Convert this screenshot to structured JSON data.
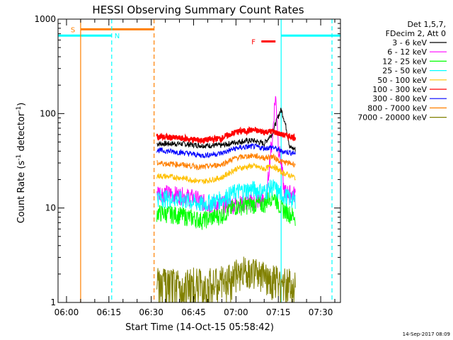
{
  "chart_data": {
    "type": "line",
    "title": "HESSI Observing Summary Count Rates",
    "xlabel": "Start Time (14-Oct-15 05:58:42)",
    "ylabel": {
      "pre": "Count Rate (s",
      "sup1": "-1",
      "mid": " detector",
      "sup2": "-1",
      "post": ")"
    },
    "yscale": "log",
    "ylim": [
      1,
      1000
    ],
    "y_ticks": [
      {
        "v": 1,
        "label": "1"
      },
      {
        "v": 10,
        "label": "10"
      },
      {
        "v": 100,
        "label": "100"
      },
      {
        "v": 1000,
        "label": "1000"
      }
    ],
    "xlim": [
      "05:57",
      "07:37"
    ],
    "x_ticks": [
      {
        "t": "06:00",
        "label": "06:00"
      },
      {
        "t": "06:15",
        "label": "06:15"
      },
      {
        "t": "06:30",
        "label": "06:30"
      },
      {
        "t": "06:45",
        "label": "06:45"
      },
      {
        "t": "07:00",
        "label": "07:00"
      },
      {
        "t": "07:15",
        "label": "07:15"
      },
      {
        "t": "07:30",
        "label": "07:30"
      }
    ],
    "legend_header": [
      "Det 1,5,7,",
      "FDecim 2, Att 0"
    ],
    "legend_position": "right",
    "series": [
      {
        "name": "3 - 6 keV",
        "color": "#000000",
        "x": [
          "06:32",
          "06:40",
          "06:48",
          "06:55",
          "07:00",
          "07:06",
          "07:10",
          "07:13",
          "07:16",
          "07:19",
          "07:21"
        ],
        "y": [
          48,
          48,
          46,
          46,
          50,
          52,
          48,
          62,
          110,
          44,
          42
        ]
      },
      {
        "name": "6 - 12 keV",
        "color": "#ff00ff",
        "x": [
          "06:32",
          "06:45",
          "06:50",
          "07:00",
          "07:08",
          "07:11",
          "07:13",
          "07:14",
          "07:15",
          "07:17",
          "07:21"
        ],
        "y": [
          15,
          13,
          11,
          11,
          12,
          12,
          55,
          150,
          45,
          15,
          14
        ]
      },
      {
        "name": "12 - 25 keV",
        "color": "#00ff00",
        "x": [
          "06:32",
          "06:40",
          "06:48",
          "06:55",
          "07:00",
          "07:06",
          "07:10",
          "07:13",
          "07:16",
          "07:21"
        ],
        "y": [
          9,
          8.5,
          7.5,
          8.5,
          10.5,
          11,
          11,
          14,
          10,
          8
        ]
      },
      {
        "name": "25 - 50 keV",
        "color": "#00ffff",
        "x": [
          "06:32",
          "06:40",
          "06:48",
          "06:55",
          "07:00",
          "07:06",
          "07:10",
          "07:13",
          "07:16",
          "07:21"
        ],
        "y": [
          13,
          12.5,
          11,
          12.5,
          15,
          16,
          15,
          17,
          14,
          12
        ]
      },
      {
        "name": "50 - 100 keV",
        "color": "#ffc000",
        "x": [
          "06:32",
          "06:40",
          "06:48",
          "06:55",
          "07:00",
          "07:06",
          "07:10",
          "07:13",
          "07:16",
          "07:21"
        ],
        "y": [
          22,
          21,
          19,
          21,
          26,
          28,
          26,
          28,
          24,
          21
        ]
      },
      {
        "name": "100 - 300 keV",
        "color": "#ff0000",
        "x": [
          "06:32",
          "06:40",
          "06:48",
          "06:55",
          "07:00",
          "07:06",
          "07:10",
          "07:13",
          "07:16",
          "07:21"
        ],
        "y": [
          57,
          55,
          52,
          55,
          64,
          67,
          64,
          65,
          60,
          56
        ]
      },
      {
        "name": "300 - 800 keV",
        "color": "#0000ff",
        "x": [
          "06:32",
          "06:40",
          "06:48",
          "06:55",
          "07:00",
          "07:06",
          "07:10",
          "07:13",
          "07:16",
          "07:21"
        ],
        "y": [
          41,
          39,
          36,
          38,
          43,
          45,
          43,
          44,
          40,
          38
        ]
      },
      {
        "name": "800 - 7000 keV",
        "color": "#ff8000",
        "x": [
          "06:32",
          "06:40",
          "06:48",
          "06:55",
          "07:00",
          "07:06",
          "07:10",
          "07:13",
          "07:16",
          "07:21"
        ],
        "y": [
          30,
          29,
          27,
          29,
          34,
          36,
          34,
          35,
          31,
          29
        ]
      },
      {
        "name": "7000 - 20000 keV",
        "color": "#808000",
        "x": [
          "06:32",
          "06:48",
          "06:56",
          "07:00",
          "07:04",
          "07:08",
          "07:12",
          "07:16",
          "07:21"
        ],
        "y": [
          1.5,
          1.5,
          1.6,
          2.0,
          2.3,
          2.0,
          1.8,
          1.6,
          1.5
        ]
      }
    ],
    "intervals": [
      {
        "label": "S",
        "color": "#ff8000",
        "x": [
          "06:05",
          "06:31"
        ],
        "y": 780
      },
      {
        "label": "N",
        "color": "#00ffff",
        "x": [
          "05:57",
          "06:16"
        ],
        "y": 670
      },
      {
        "label": "",
        "color": "#00ffff",
        "x": [
          "07:16",
          "07:37"
        ],
        "y": 670
      },
      {
        "label": "F",
        "color": "#ff0000",
        "x": [
          "07:09",
          "07:14"
        ],
        "y": 580
      }
    ],
    "markers": [
      {
        "t": "06:05",
        "color": "#ff8000",
        "style": "solid"
      },
      {
        "t": "06:31",
        "color": "#ff8000",
        "style": "dashed"
      },
      {
        "t": "06:16",
        "color": "#00ffff",
        "style": "dashed"
      },
      {
        "t": "07:16",
        "color": "#00ffff",
        "style": "solid"
      },
      {
        "t": "07:34",
        "color": "#00ffff",
        "style": "dashed"
      }
    ],
    "timestamp": "14-Sep-2017 08:09"
  }
}
